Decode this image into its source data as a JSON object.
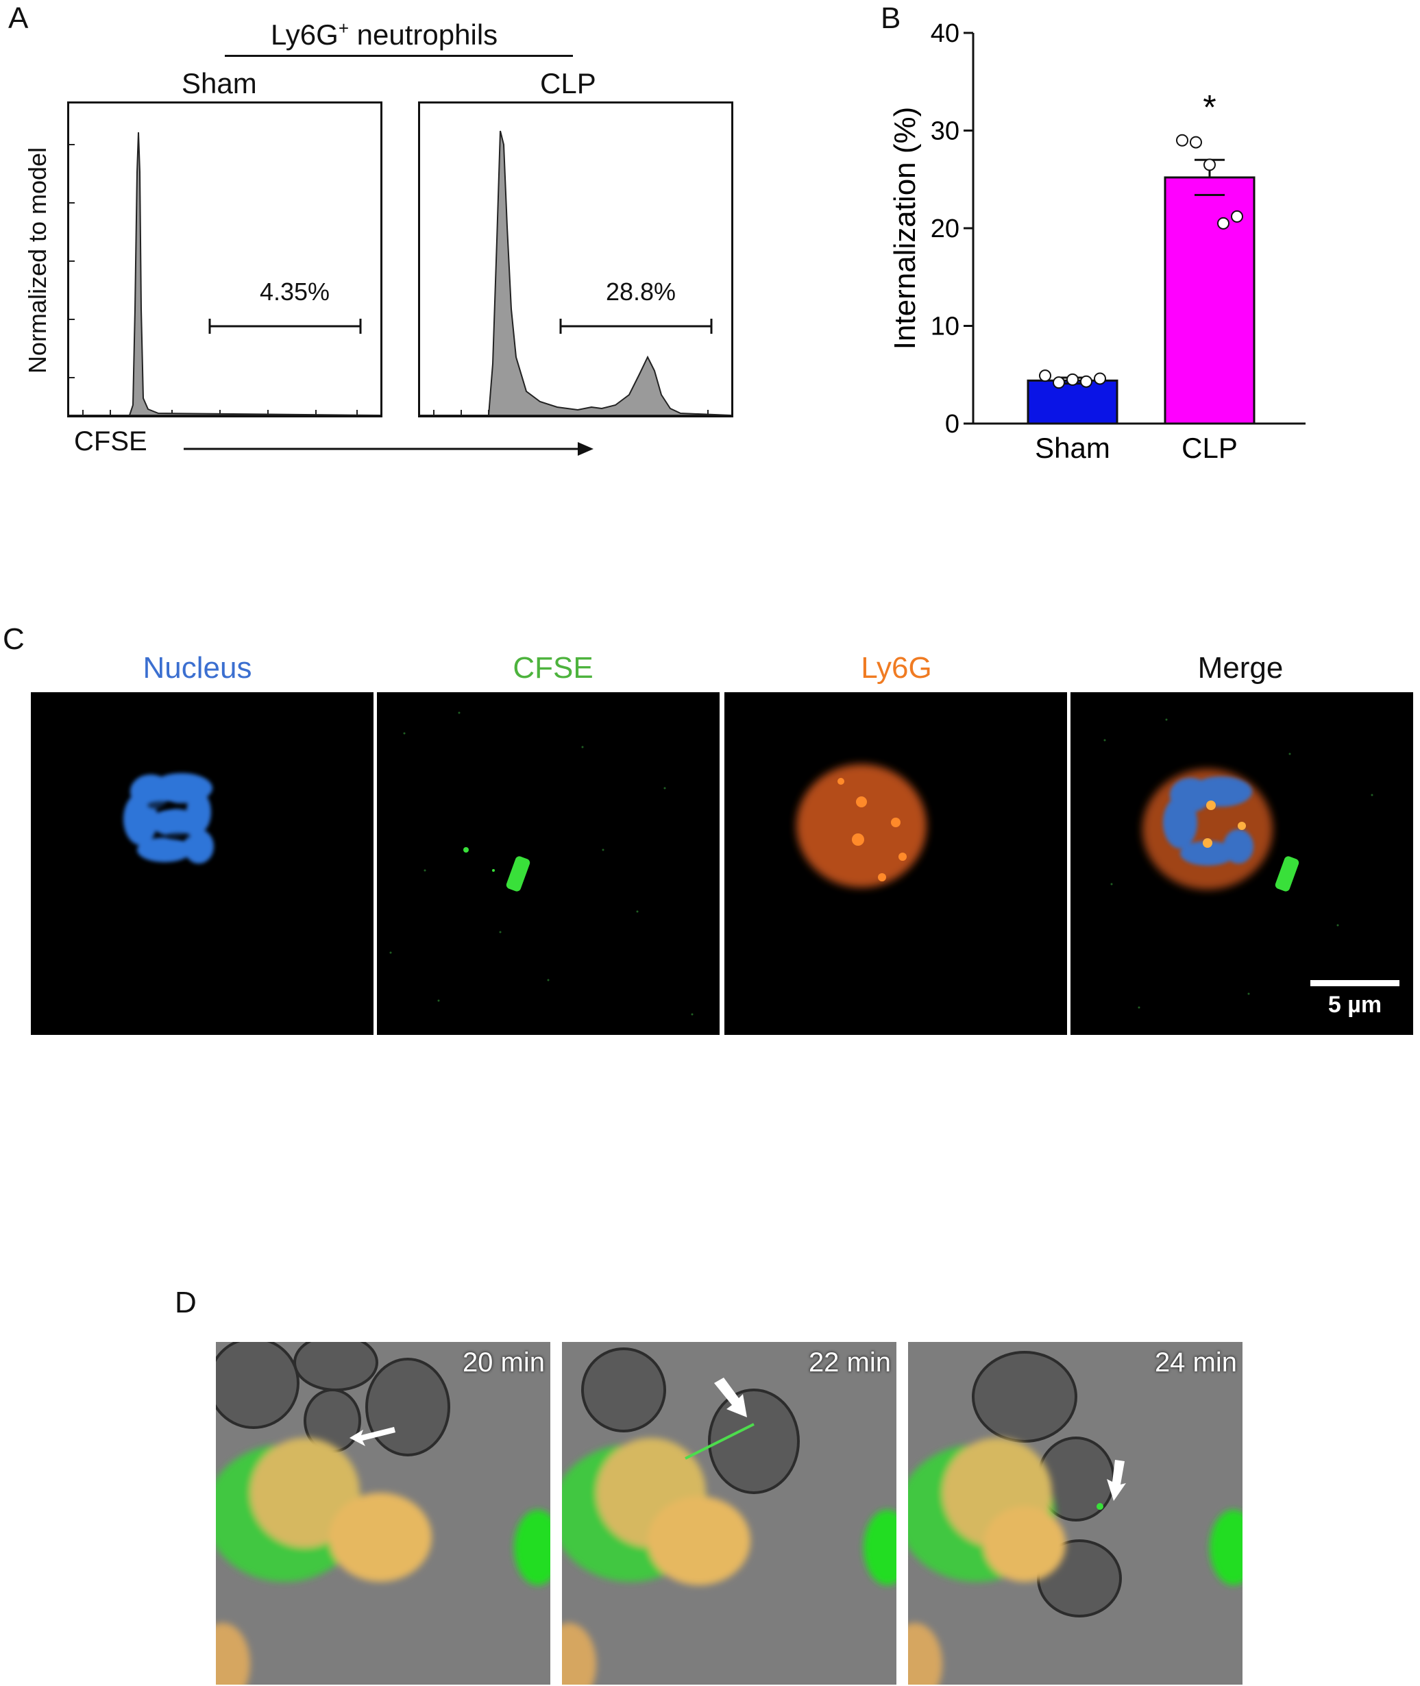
{
  "panel_a": {
    "letter": "A",
    "population_label": "Ly6G",
    "population_sup": "+",
    "population_suffix": " neutrophils",
    "y_label": "Normalized to model",
    "x_label": "CFSE",
    "histograms": [
      {
        "group": "Sham",
        "gate_percent": "4.35%"
      },
      {
        "group": "CLP",
        "gate_percent": "28.8%"
      }
    ]
  },
  "panel_b": {
    "letter": "B",
    "chart_data": {
      "type": "bar",
      "categories": [
        "Sham",
        "CLP"
      ],
      "values": [
        4.4,
        25.2
      ],
      "errors": [
        0.3,
        1.8
      ],
      "colors": [
        "#0a14e6",
        "#ff00ff"
      ],
      "points": [
        [
          4.9,
          4.2,
          4.5,
          4.3,
          4.6
        ],
        [
          29.0,
          28.8,
          26.5,
          20.5,
          21.2
        ]
      ],
      "ylabel": "Internalization (%)",
      "yticks": [
        0,
        10,
        20,
        30,
        40
      ],
      "ylim": [
        0,
        40
      ],
      "significance": {
        "category": "CLP",
        "mark": "*"
      }
    }
  },
  "panel_c": {
    "letter": "C",
    "channels": [
      {
        "title": "Nucleus",
        "color": "#3b6fd0"
      },
      {
        "title": "CFSE",
        "color": "#4db33d"
      },
      {
        "title": "Ly6G",
        "color": "#f07b22"
      },
      {
        "title": "Merge",
        "color": "#111111"
      }
    ],
    "scale_bar": "5 µm"
  },
  "panel_d": {
    "letter": "D",
    "frames": [
      {
        "time": "20 min"
      },
      {
        "time": "22 min"
      },
      {
        "time": "24 min"
      }
    ]
  }
}
